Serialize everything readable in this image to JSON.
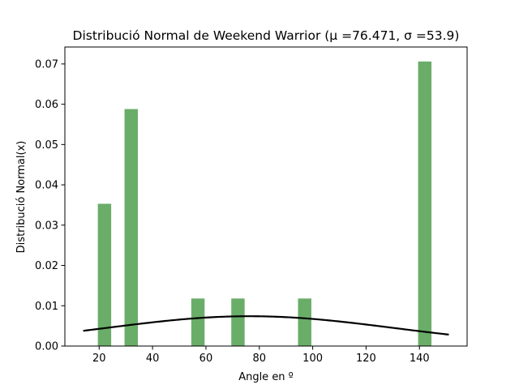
{
  "chart_data": {
    "type": "bar",
    "title": "Distribució Normal de Weekend Warrior (μ =76.471, σ =53.9)",
    "xlabel": "Angle en º",
    "ylabel": "Distribució Normal(x)",
    "xlim": [
      7.15,
      157.85
    ],
    "ylim": [
      0,
      0.0742
    ],
    "xticks": [
      20,
      40,
      60,
      80,
      100,
      120,
      140
    ],
    "yticks": [
      0.0,
      0.01,
      0.02,
      0.03,
      0.04,
      0.05,
      0.06,
      0.07
    ],
    "ytick_format": 2,
    "grid": false,
    "bar_color": "#4f9f4f",
    "bar_opacity": 0.85,
    "bar_width": 5,
    "bars": [
      {
        "x": 22,
        "value": 0.0353
      },
      {
        "x": 32,
        "value": 0.0588
      },
      {
        "x": 57,
        "value": 0.0118
      },
      {
        "x": 72,
        "value": 0.0118
      },
      {
        "x": 97,
        "value": 0.0118
      },
      {
        "x": 142,
        "value": 0.0706
      }
    ],
    "curve": {
      "type": "normal_pdf",
      "mu": 76.471,
      "sigma": 53.9,
      "x_range": [
        14,
        151
      ],
      "color": "#000000"
    }
  }
}
